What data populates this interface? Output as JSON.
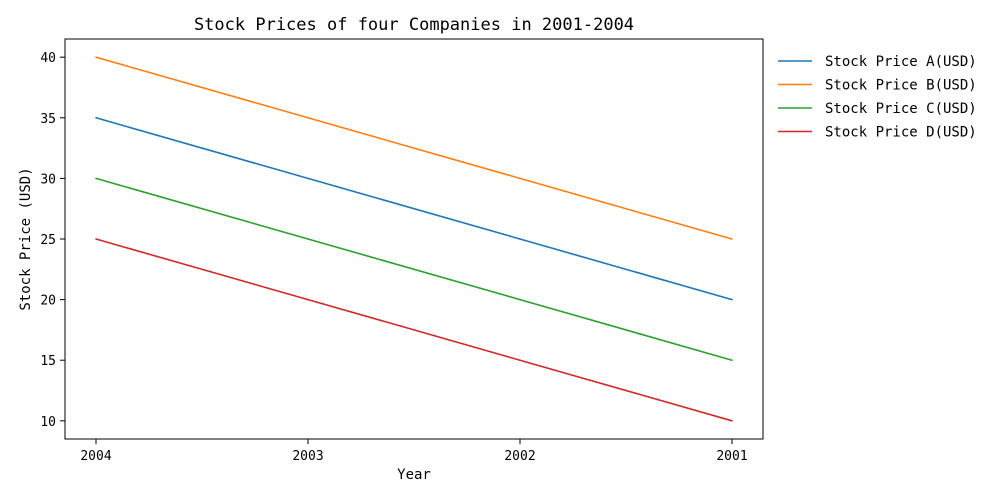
{
  "chart_data": {
    "type": "line",
    "title": "Stock Prices of four Companies in 2001-2004",
    "xlabel": "Year",
    "ylabel": "Stock Price (USD)",
    "categories": [
      "2004",
      "2003",
      "2002",
      "2001"
    ],
    "ylim": [
      8.5,
      41.5
    ],
    "yticks": [
      10,
      15,
      20,
      25,
      30,
      35,
      40
    ],
    "grid": false,
    "legend_position": "outside-top-right",
    "series": [
      {
        "name": "Stock Price A(USD)",
        "color": "#1f77b4",
        "values": [
          35,
          30,
          25,
          20
        ]
      },
      {
        "name": "Stock Price B(USD)",
        "color": "#ff7f0e",
        "values": [
          40,
          35,
          30,
          25
        ]
      },
      {
        "name": "Stock Price C(USD)",
        "color": "#2ca02c",
        "values": [
          30,
          25,
          20,
          15
        ]
      },
      {
        "name": "Stock Price D(USD)",
        "color": "#d62728",
        "values": [
          25,
          20,
          15,
          10
        ]
      }
    ]
  }
}
